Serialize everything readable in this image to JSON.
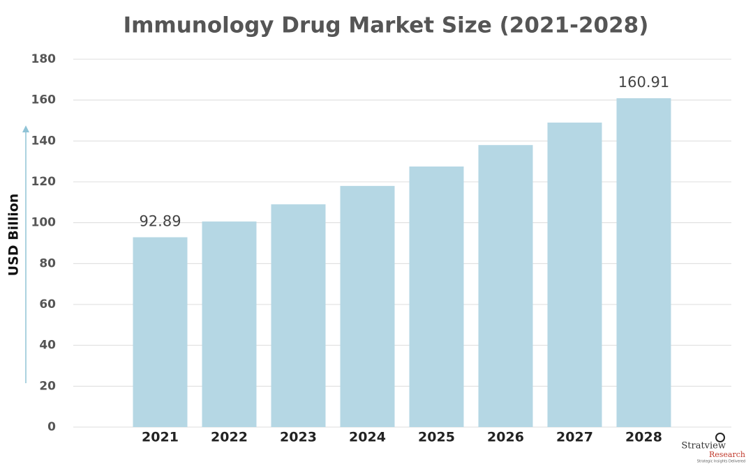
{
  "chart_data": {
    "type": "bar",
    "title": "Immunology Drug Market Size (2021-2028)",
    "y_label": "USD Billion",
    "categories": [
      "2021",
      "2022",
      "2023",
      "2024",
      "2025",
      "2026",
      "2027",
      "2028"
    ],
    "values": [
      92.89,
      100.6,
      109,
      118,
      127.5,
      138,
      149,
      160.91
    ],
    "value_labels": [
      "92.89",
      null,
      null,
      null,
      null,
      null,
      null,
      "160.91"
    ],
    "color": "#b5d7e4",
    "ylim": [
      0,
      180
    ],
    "yticks": [
      0,
      20,
      40,
      60,
      80,
      100,
      120,
      140,
      160,
      180
    ],
    "grid": true
  },
  "logo": {
    "name": "Stratview",
    "sub": "Research",
    "tagline": "Strategic Insights Delivered"
  }
}
